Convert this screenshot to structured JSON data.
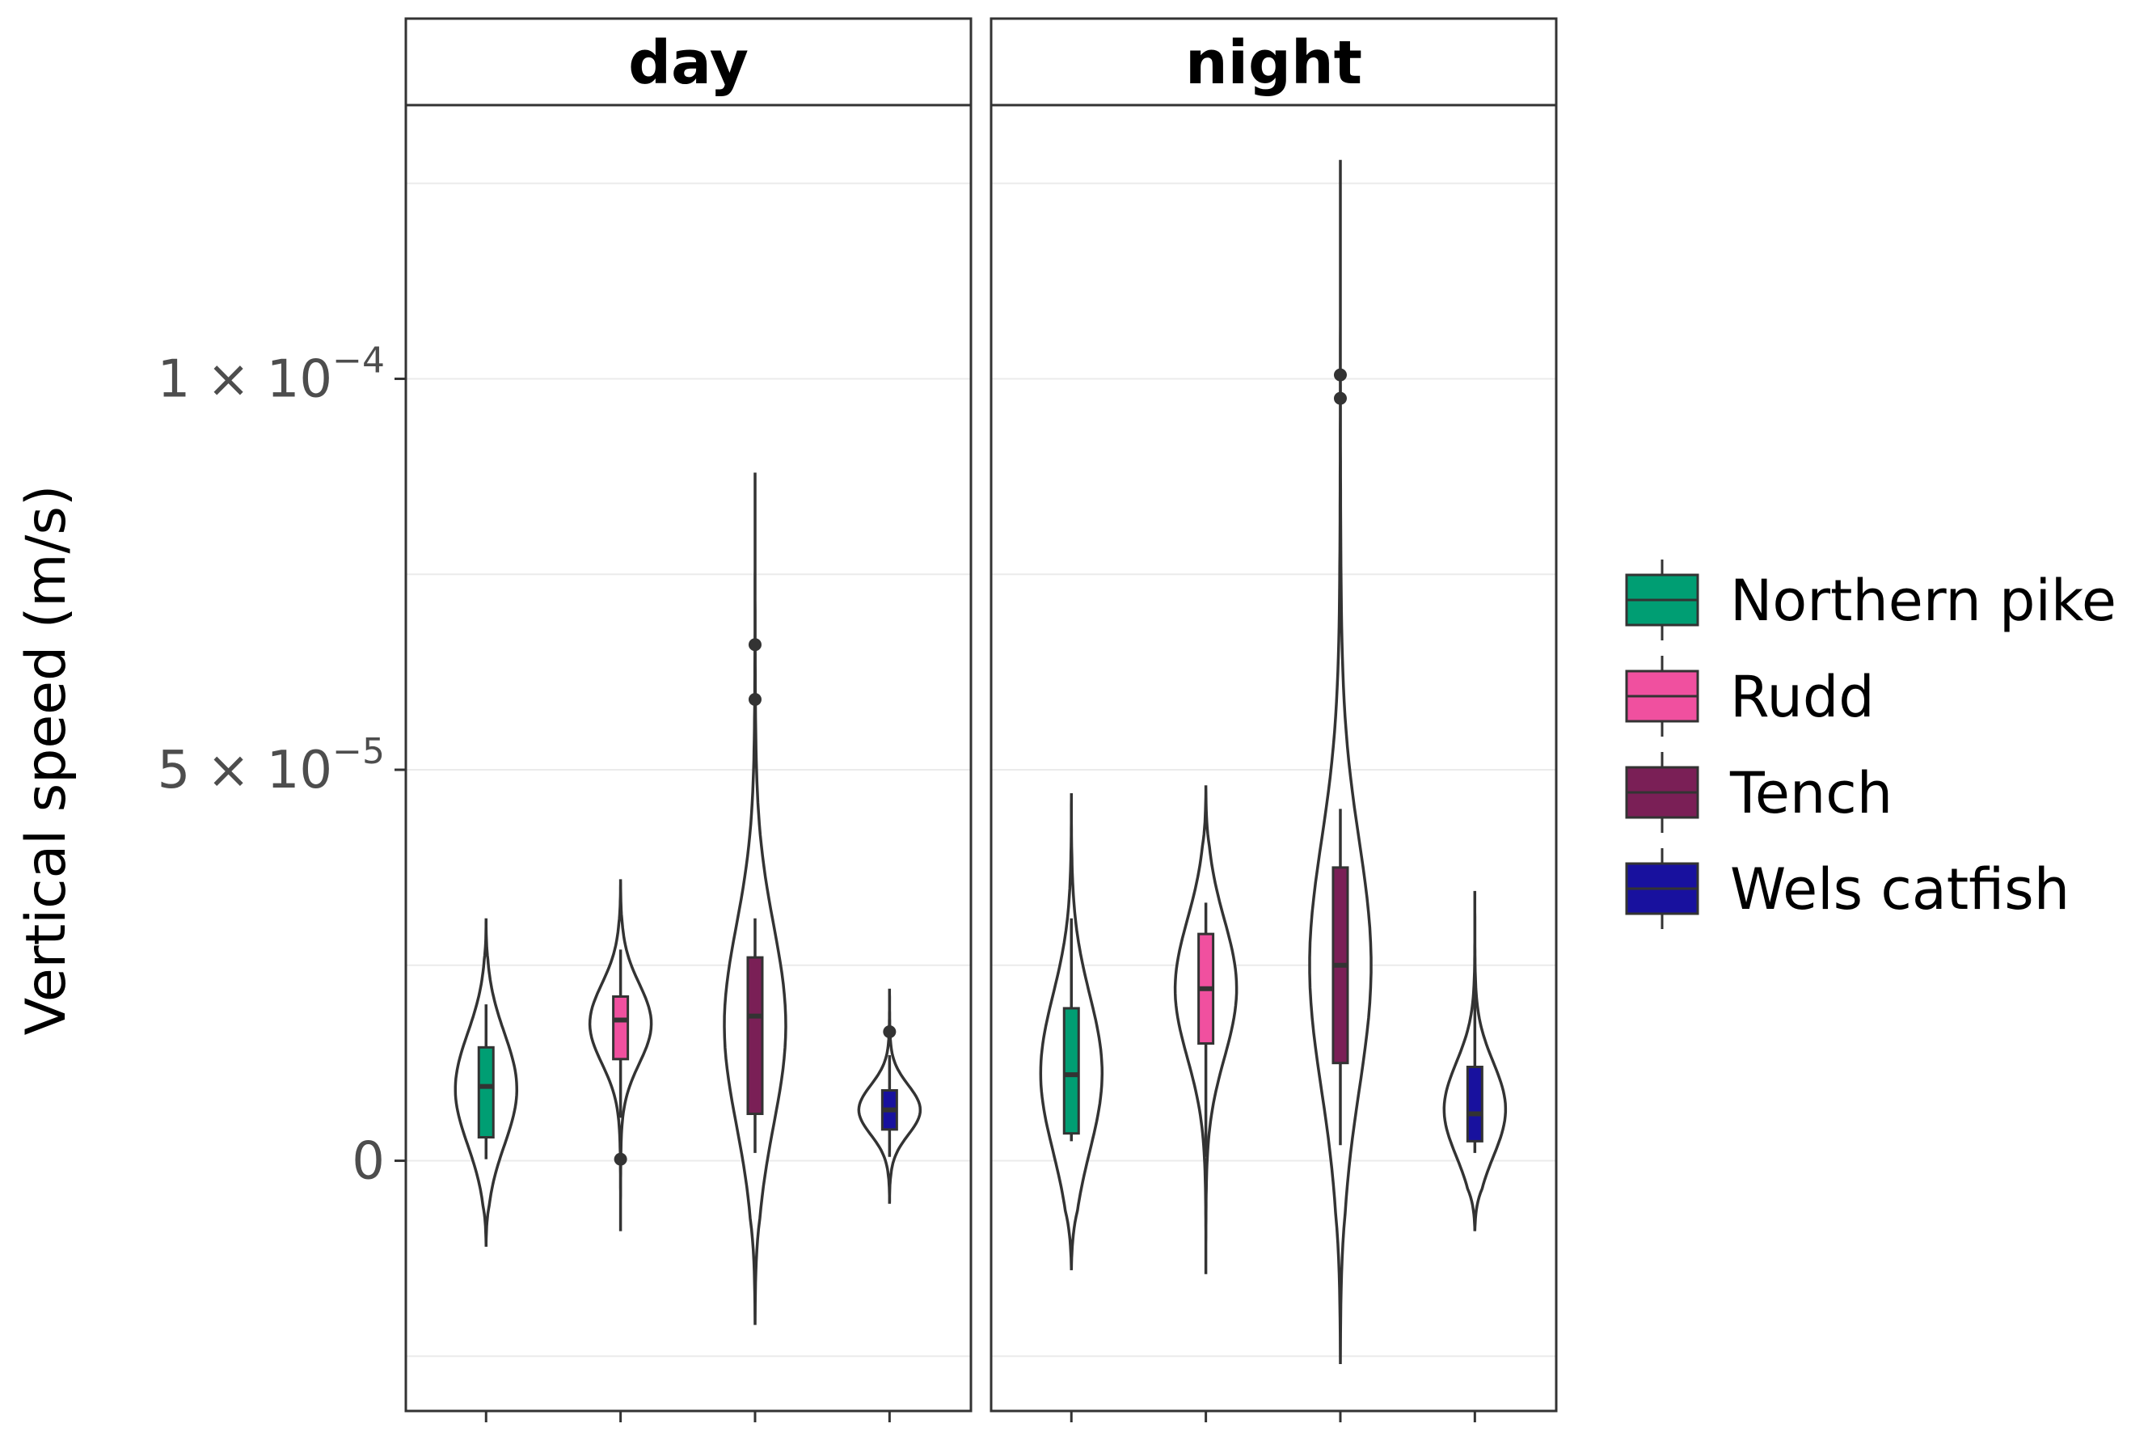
{
  "chart_data": {
    "type": "violin",
    "facets": [
      "day",
      "night"
    ],
    "ylabel": "Vertical speed (m/s)",
    "xlabel": "",
    "ylim": [
      -3.2e-05,
      0.000135
    ],
    "yticks": [
      {
        "value": 0,
        "label": "0"
      },
      {
        "value": 5e-05,
        "base": "5 × 10",
        "exp": "−5"
      },
      {
        "value": 0.0001,
        "base": "1 × 10",
        "exp": "−4"
      }
    ],
    "ygrid_minor": [
      -2.5e-05,
      2.5e-05,
      7.5e-05,
      0.000125
    ],
    "grid": true,
    "legend": {
      "position": "right",
      "entries": [
        {
          "label": "Northern pike",
          "color": "#009E73"
        },
        {
          "label": "Rudd",
          "color": "#F0509F"
        },
        {
          "label": "Tench",
          "color": "#7A1F56"
        },
        {
          "label": "Wels catfish",
          "color": "#18119E"
        }
      ]
    },
    "series": [
      {
        "facet": "day",
        "name": "Northern pike",
        "violin_min": -1.1e-05,
        "violin_max": 3.1e-05,
        "whisker_low": 2e-07,
        "q1": 3e-06,
        "median": 9.5e-06,
        "q3": 1.45e-05,
        "whisker_high": 2e-05,
        "outliers": []
      },
      {
        "facet": "day",
        "name": "Rudd",
        "violin_min": -9e-06,
        "violin_max": 3.6e-05,
        "whisker_low": 5.5e-06,
        "q1": 1.3e-05,
        "median": 1.8e-05,
        "q3": 2.1e-05,
        "whisker_high": 2.7e-05,
        "outliers": [
          2e-07
        ]
      },
      {
        "facet": "day",
        "name": "Tench",
        "violin_min": -2.1e-05,
        "violin_max": 8.8e-05,
        "whisker_low": 1e-06,
        "q1": 6e-06,
        "median": 1.85e-05,
        "q3": 2.6e-05,
        "whisker_high": 3.1e-05,
        "outliers": [
          5.9e-05,
          6.6e-05
        ]
      },
      {
        "facet": "day",
        "name": "Wels catfish",
        "violin_min": -5.5e-06,
        "violin_max": 2.2e-05,
        "whisker_low": 5e-07,
        "q1": 4e-06,
        "median": 6.5e-06,
        "q3": 9e-06,
        "whisker_high": 1.35e-05,
        "outliers": [
          1.65e-05
        ]
      },
      {
        "facet": "night",
        "name": "Northern pike",
        "violin_min": -1.4e-05,
        "violin_max": 4.7e-05,
        "whisker_low": 2.5e-06,
        "q1": 3.5e-06,
        "median": 1.1e-05,
        "q3": 1.95e-05,
        "whisker_high": 3.1e-05,
        "outliers": []
      },
      {
        "facet": "night",
        "name": "Rudd",
        "violin_min": -1.45e-05,
        "violin_max": 4.8e-05,
        "whisker_low": 5e-07,
        "q1": 1.5e-05,
        "median": 2.2e-05,
        "q3": 2.9e-05,
        "whisker_high": 3.3e-05,
        "outliers": []
      },
      {
        "facet": "night",
        "name": "Tench",
        "violin_min": -2.6e-05,
        "violin_max": 0.000128,
        "whisker_low": 2e-06,
        "q1": 1.25e-05,
        "median": 2.5e-05,
        "q3": 3.75e-05,
        "whisker_high": 4.5e-05,
        "outliers": [
          9.75e-05,
          0.0001005
        ]
      },
      {
        "facet": "night",
        "name": "Wels catfish",
        "violin_min": -9e-06,
        "violin_max": 3.45e-05,
        "whisker_low": 1e-06,
        "q1": 2.5e-06,
        "median": 6e-06,
        "q3": 1.2e-05,
        "whisker_high": 2.4e-05,
        "outliers": []
      }
    ]
  }
}
